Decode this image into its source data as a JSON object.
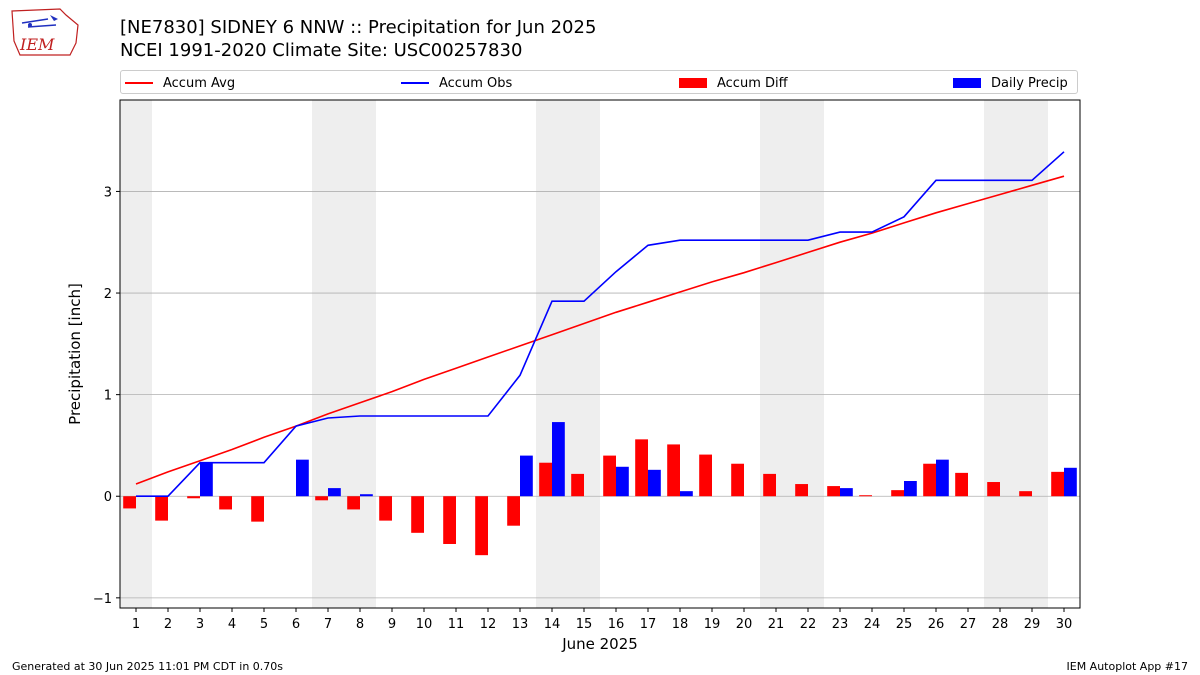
{
  "header": {
    "title": "[NE7830] SIDNEY 6 NNW :: Precipitation for Jun 2025",
    "subtitle": "NCEI 1991-2020 Climate Site: USC00257830",
    "logo_text": "IEM"
  },
  "legend": {
    "items": [
      {
        "label": "Accum Avg",
        "kind": "line",
        "color": "#ff0000"
      },
      {
        "label": "Accum Obs",
        "kind": "line",
        "color": "#0000ff"
      },
      {
        "label": "Accum Diff",
        "kind": "box",
        "color": "#ff0000"
      },
      {
        "label": "Daily Precip",
        "kind": "box",
        "color": "#0000ff"
      }
    ]
  },
  "footer": {
    "left": "Generated at 30 Jun 2025 11:01 PM CDT in 0.70s",
    "right": "IEM Autoplot App #17"
  },
  "chart_data": {
    "type": "bar",
    "xlabel": "June 2025",
    "ylabel": "Precipitation [inch]",
    "ylim": [
      -1.1,
      3.9
    ],
    "yticks": [
      -1,
      0,
      1,
      2,
      3
    ],
    "grid": "horizontal",
    "legend_position": "top",
    "weekend_shading": true,
    "shaded_days": [
      1,
      7,
      8,
      14,
      15,
      21,
      22,
      28,
      29
    ],
    "categories": [
      "1",
      "2",
      "3",
      "4",
      "5",
      "6",
      "7",
      "8",
      "9",
      "10",
      "11",
      "12",
      "13",
      "14",
      "15",
      "16",
      "17",
      "18",
      "19",
      "20",
      "21",
      "22",
      "23",
      "24",
      "25",
      "26",
      "27",
      "28",
      "29",
      "30"
    ],
    "series": [
      {
        "name": "Accum Avg",
        "type": "line",
        "color": "#ff0000",
        "values": [
          0.12,
          0.24,
          0.35,
          0.46,
          0.58,
          0.69,
          0.81,
          0.92,
          1.03,
          1.15,
          1.26,
          1.37,
          1.48,
          1.59,
          1.7,
          1.81,
          1.91,
          2.01,
          2.11,
          2.2,
          2.3,
          2.4,
          2.5,
          2.59,
          2.69,
          2.79,
          2.88,
          2.97,
          3.06,
          3.15
        ]
      },
      {
        "name": "Accum Obs",
        "type": "line",
        "color": "#0000ff",
        "values": [
          0.0,
          0.0,
          0.33,
          0.33,
          0.33,
          0.69,
          0.77,
          0.79,
          0.79,
          0.79,
          0.79,
          0.79,
          1.19,
          1.92,
          1.92,
          2.21,
          2.47,
          2.52,
          2.52,
          2.52,
          2.52,
          2.52,
          2.6,
          2.6,
          2.75,
          3.11,
          3.11,
          3.11,
          3.11,
          3.39
        ]
      },
      {
        "name": "Accum Diff",
        "type": "bar",
        "color": "#ff0000",
        "values": [
          -0.12,
          -0.24,
          -0.02,
          -0.13,
          -0.25,
          0.0,
          -0.04,
          -0.13,
          -0.24,
          -0.36,
          -0.47,
          -0.58,
          -0.29,
          0.33,
          0.22,
          0.4,
          0.56,
          0.51,
          0.41,
          0.32,
          0.22,
          0.12,
          0.1,
          0.01,
          0.06,
          0.32,
          0.23,
          0.14,
          0.05,
          0.24
        ]
      },
      {
        "name": "Daily Precip",
        "type": "bar",
        "color": "#0000ff",
        "values": [
          0.0,
          0.0,
          0.33,
          0.0,
          0.0,
          0.36,
          0.08,
          0.02,
          0.0,
          0.0,
          0.0,
          0.0,
          0.4,
          0.73,
          0.0,
          0.29,
          0.26,
          0.05,
          0.0,
          0.0,
          0.0,
          0.0,
          0.08,
          0.0,
          0.15,
          0.36,
          0.0,
          0.0,
          0.0,
          0.28
        ]
      }
    ]
  }
}
